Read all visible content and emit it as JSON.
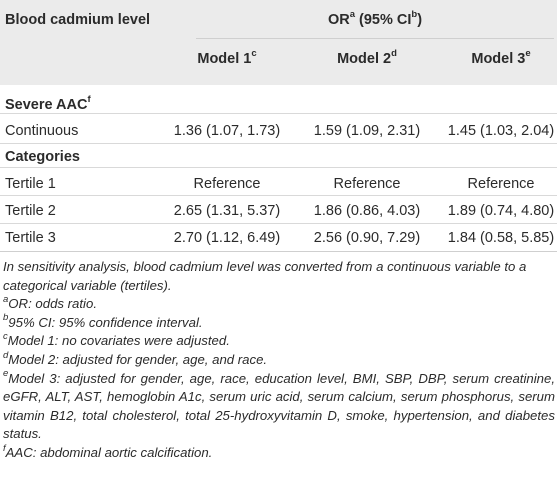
{
  "table": {
    "header": {
      "row_label": "Blood cadmium level",
      "group_label": "OR",
      "group_sup": "a",
      "group_ci_open": " (95% CI",
      "group_ci_sup": "b",
      "group_ci_close": ")",
      "models": [
        {
          "label": "Model 1",
          "sup": "c"
        },
        {
          "label": "Model 2",
          "sup": "d"
        },
        {
          "label": "Model 3",
          "sup": "e"
        }
      ]
    },
    "section1": {
      "label": "Severe AAC",
      "sup": "f"
    },
    "continuous": {
      "label": "Continuous",
      "values": [
        "1.36 (1.07, 1.73)",
        "1.59 (1.09, 2.31)",
        "1.45 (1.03, 2.04)"
      ]
    },
    "section2": {
      "label": "Categories"
    },
    "rows": [
      {
        "label": "Tertile 1",
        "values": [
          "Reference",
          "Reference",
          "Reference"
        ]
      },
      {
        "label": "Tertile 2",
        "values": [
          "2.65 (1.31, 5.37)",
          "1.86 (0.86, 4.03)",
          "1.89 (0.74, 4.80)"
        ]
      },
      {
        "label": "Tertile 3",
        "values": [
          "2.70 (1.12, 6.49)",
          "2.56 (0.90, 7.29)",
          "1.84 (0.58, 5.85)"
        ]
      }
    ]
  },
  "footnotes": {
    "intro": "In sensitivity analysis, blood cadmium level was converted from a continuous variable to a categorical variable (tertiles).",
    "a": {
      "sup": "a",
      "text": "OR: odds ratio."
    },
    "b": {
      "sup": "b",
      "text": "95% CI: 95% confidence interval."
    },
    "c": {
      "sup": "c",
      "text": "Model 1: no covariates were adjusted."
    },
    "d": {
      "sup": "d",
      "text": "Model 2: adjusted for gender, age, and race."
    },
    "e": {
      "sup": "e",
      "text": "Model 3: adjusted for gender, age, race, education level, BMI, SBP, DBP, serum creatinine, eGFR, ALT, AST, hemoglobin A1c, serum uric acid, serum calcium, serum phosphorus, serum vitamin B12, total cholesterol, total 25-hydroxyvitamin D, smoke, hypertension, and diabetes status."
    },
    "f": {
      "sup": "f",
      "text": "AAC: abdominal aortic calcification."
    }
  }
}
